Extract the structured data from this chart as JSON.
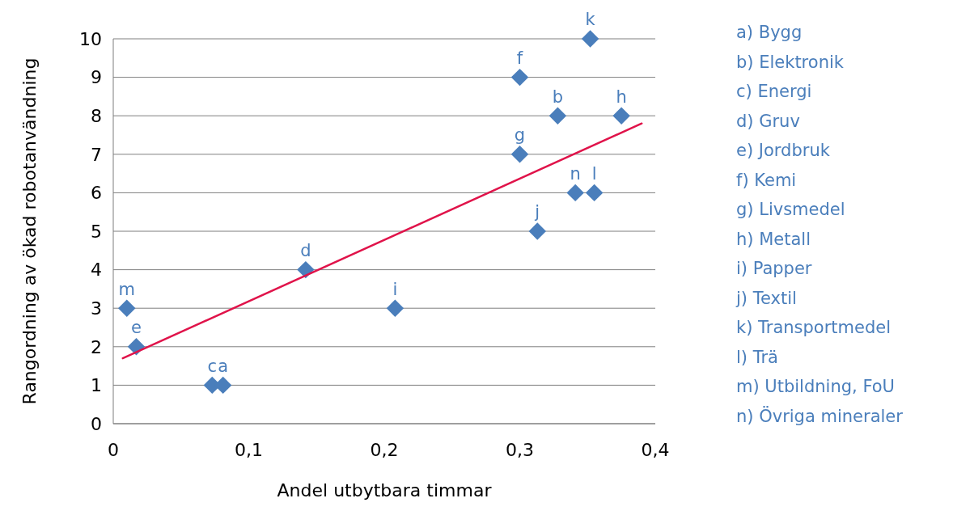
{
  "chart_data": {
    "type": "scatter",
    "xlabel": "Andel utbytbara timmar",
    "ylabel": "Rangordning av ökad robotanvändning",
    "xlim": [
      0,
      0.4
    ],
    "ylim": [
      0,
      10
    ],
    "xticks": [
      {
        "value": 0,
        "label": "0"
      },
      {
        "value": 0.1,
        "label": "0,1"
      },
      {
        "value": 0.2,
        "label": "0,2"
      },
      {
        "value": 0.3,
        "label": "0,3"
      },
      {
        "value": 0.4,
        "label": "0,4"
      }
    ],
    "yticks": [
      0,
      1,
      2,
      3,
      4,
      5,
      6,
      7,
      8,
      9,
      10
    ],
    "grid": "y",
    "series": [
      {
        "color": "#4a7ebb",
        "marker": "diamond",
        "x": [
          0.01,
          0.017,
          0.073,
          0.081,
          0.142,
          0.208,
          0.3,
          0.3,
          0.313,
          0.328,
          0.341,
          0.352,
          0.355,
          0.375
        ],
        "values": [
          3,
          2,
          1,
          1,
          4,
          3,
          9,
          7,
          5,
          8,
          6,
          10,
          6,
          8
        ]
      },
      {
        "type": "line",
        "marker": "none",
        "color": "#e0134a",
        "x": [
          0.007,
          0.39
        ],
        "values": [
          1.7,
          7.8
        ]
      }
    ],
    "annotations": [
      {
        "text": "m",
        "x": 0.01,
        "y": 3
      },
      {
        "text": "e",
        "x": 0.017,
        "y": 2
      },
      {
        "text": "c",
        "x": 0.073,
        "y": 1
      },
      {
        "text": "a",
        "x": 0.081,
        "y": 1
      },
      {
        "text": "d",
        "x": 0.142,
        "y": 4
      },
      {
        "text": "i",
        "x": 0.208,
        "y": 3
      },
      {
        "text": "f",
        "x": 0.3,
        "y": 9
      },
      {
        "text": "g",
        "x": 0.3,
        "y": 7
      },
      {
        "text": "j",
        "x": 0.313,
        "y": 5
      },
      {
        "text": "b",
        "x": 0.328,
        "y": 8
      },
      {
        "text": "n",
        "x": 0.341,
        "y": 6
      },
      {
        "text": "k",
        "x": 0.352,
        "y": 10
      },
      {
        "text": "l",
        "x": 0.355,
        "y": 6
      },
      {
        "text": "h",
        "x": 0.375,
        "y": 8
      },
      "a) Bygg",
      "b) Elektronik",
      "c) Energi",
      "d) Gruv",
      "e) Jordbruk",
      "f) Kemi",
      "g) Livsmedel",
      "h) Metall",
      "i) Papper",
      "j) Textil",
      "k) Transportmedel",
      "l) Trä",
      "m) Utbildning, FoU",
      "n) Övriga mineraler"
    ]
  }
}
